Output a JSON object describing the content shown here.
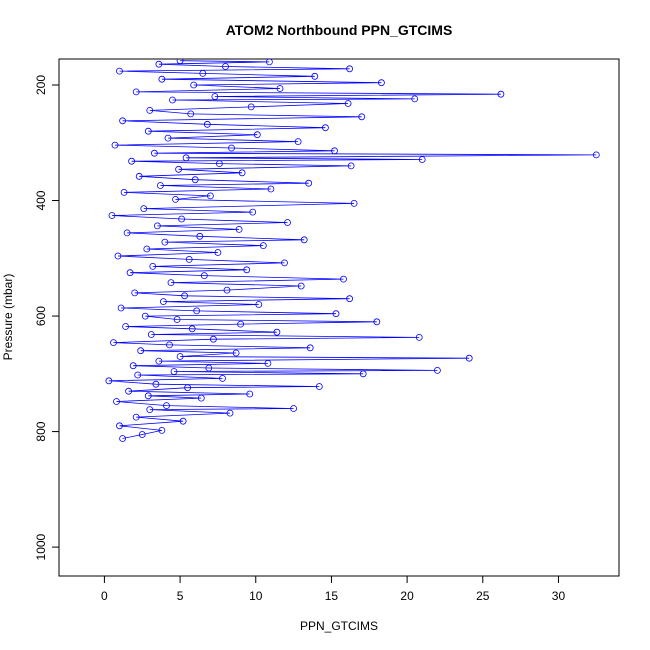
{
  "chart_data": {
    "type": "scatter",
    "title": "ATOM2 Northbound PPN_GTCIMS",
    "xlabel": "PPN_GTCIMS",
    "ylabel": "Pressure (mbar)",
    "xlim": [
      -3,
      34
    ],
    "ylim": [
      1050,
      155
    ],
    "y_axis_reversed": true,
    "x_ticks": [
      0,
      5,
      10,
      15,
      20,
      25,
      30
    ],
    "y_ticks": [
      200,
      400,
      600,
      800,
      1000
    ],
    "x_tick_labels": [
      "0",
      "5",
      "10",
      "15",
      "20",
      "25",
      "30"
    ],
    "y_tick_labels": [
      "200",
      "400",
      "600",
      "800",
      "1000"
    ],
    "series": [
      {
        "marker": "open-circle",
        "connected": true,
        "color": "#0000ff",
        "points": [
          [
            1.2,
            812
          ],
          [
            2.5,
            805
          ],
          [
            3.8,
            798
          ],
          [
            1.0,
            790
          ],
          [
            5.2,
            782
          ],
          [
            2.1,
            775
          ],
          [
            8.3,
            768
          ],
          [
            3.0,
            762
          ],
          [
            12.5,
            760
          ],
          [
            4.1,
            755
          ],
          [
            0.8,
            748
          ],
          [
            6.4,
            742
          ],
          [
            2.9,
            738
          ],
          [
            9.6,
            735
          ],
          [
            1.6,
            730
          ],
          [
            5.5,
            724
          ],
          [
            14.2,
            722
          ],
          [
            3.4,
            718
          ],
          [
            0.3,
            712
          ],
          [
            7.8,
            708
          ],
          [
            2.2,
            702
          ],
          [
            17.1,
            700
          ],
          [
            4.6,
            696
          ],
          [
            22.0,
            694
          ],
          [
            6.9,
            690
          ],
          [
            1.9,
            686
          ],
          [
            10.8,
            682
          ],
          [
            3.6,
            678
          ],
          [
            24.1,
            673
          ],
          [
            5.0,
            670
          ],
          [
            8.7,
            664
          ],
          [
            2.4,
            660
          ],
          [
            13.6,
            655
          ],
          [
            4.3,
            650
          ],
          [
            0.6,
            646
          ],
          [
            7.2,
            640
          ],
          [
            20.8,
            637
          ],
          [
            3.1,
            632
          ],
          [
            11.4,
            628
          ],
          [
            5.8,
            622
          ],
          [
            1.4,
            618
          ],
          [
            9.0,
            614
          ],
          [
            18.0,
            610
          ],
          [
            4.8,
            606
          ],
          [
            2.7,
            600
          ],
          [
            15.3,
            596
          ],
          [
            6.1,
            591
          ],
          [
            1.1,
            586
          ],
          [
            10.2,
            580
          ],
          [
            3.9,
            575
          ],
          [
            16.2,
            570
          ],
          [
            5.3,
            565
          ],
          [
            2.0,
            560
          ],
          [
            8.1,
            555
          ],
          [
            13.0,
            548
          ],
          [
            4.4,
            542
          ],
          [
            15.8,
            536
          ],
          [
            6.6,
            530
          ],
          [
            1.7,
            525
          ],
          [
            9.4,
            520
          ],
          [
            3.2,
            514
          ],
          [
            11.9,
            508
          ],
          [
            5.6,
            502
          ],
          [
            0.9,
            496
          ],
          [
            7.5,
            490
          ],
          [
            2.8,
            484
          ],
          [
            10.5,
            478
          ],
          [
            4.0,
            472
          ],
          [
            13.2,
            468
          ],
          [
            6.3,
            462
          ],
          [
            1.5,
            456
          ],
          [
            8.9,
            450
          ],
          [
            3.5,
            444
          ],
          [
            12.1,
            438
          ],
          [
            5.1,
            432
          ],
          [
            0.5,
            426
          ],
          [
            9.8,
            420
          ],
          [
            2.6,
            414
          ],
          [
            16.5,
            405
          ],
          [
            4.7,
            398
          ],
          [
            7.0,
            392
          ],
          [
            1.3,
            386
          ],
          [
            11.0,
            380
          ],
          [
            3.7,
            374
          ],
          [
            13.5,
            370
          ],
          [
            6.0,
            364
          ],
          [
            2.3,
            358
          ],
          [
            9.1,
            352
          ],
          [
            4.9,
            346
          ],
          [
            16.3,
            340
          ],
          [
            7.6,
            336
          ],
          [
            1.8,
            332
          ],
          [
            21.0,
            329
          ],
          [
            5.4,
            326
          ],
          [
            32.5,
            321
          ],
          [
            3.3,
            318
          ],
          [
            15.2,
            314
          ],
          [
            8.4,
            309
          ],
          [
            0.7,
            304
          ],
          [
            12.8,
            298
          ],
          [
            4.2,
            292
          ],
          [
            10.1,
            286
          ],
          [
            2.9,
            280
          ],
          [
            14.6,
            274
          ],
          [
            6.8,
            268
          ],
          [
            1.2,
            262
          ],
          [
            17.0,
            255
          ],
          [
            5.7,
            250
          ],
          [
            3.0,
            244
          ],
          [
            9.7,
            238
          ],
          [
            16.1,
            232
          ],
          [
            4.5,
            226
          ],
          [
            20.5,
            224
          ],
          [
            7.3,
            220
          ],
          [
            26.2,
            216
          ],
          [
            2.1,
            212
          ],
          [
            11.6,
            206
          ],
          [
            5.9,
            200
          ],
          [
            18.3,
            196
          ],
          [
            3.8,
            190
          ],
          [
            13.9,
            185
          ],
          [
            6.5,
            180
          ],
          [
            1.0,
            176
          ],
          [
            16.2,
            172
          ],
          [
            8.0,
            168
          ],
          [
            3.6,
            164
          ],
          [
            10.9,
            160
          ],
          [
            5.0,
            158
          ]
        ]
      }
    ]
  }
}
